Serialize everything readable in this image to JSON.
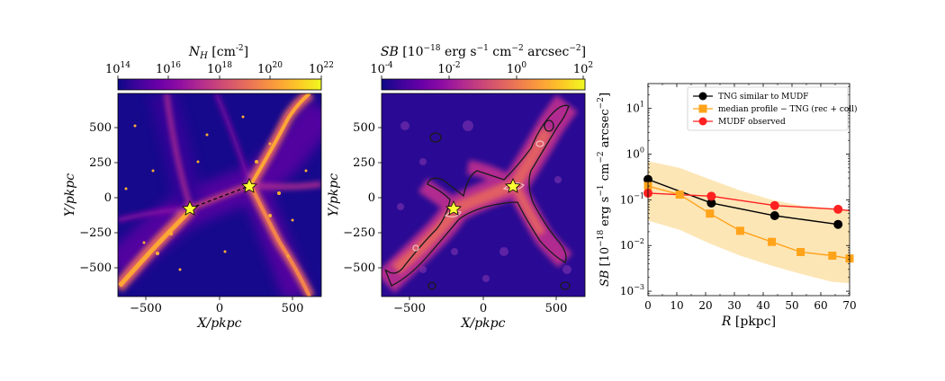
{
  "panel_left": {
    "colorbar_label": "N_H [cm^-2]",
    "colorbar_label_main": "N",
    "colorbar_label_sub": "H",
    "colorbar_label_unit": "[cm",
    "colorbar_label_exp": "-2",
    "colorbar_label_close": "]",
    "colorbar_ticks": [
      {
        "base": "10",
        "exp": "14"
      },
      {
        "base": "10",
        "exp": "16"
      },
      {
        "base": "10",
        "exp": "18"
      },
      {
        "base": "10",
        "exp": "20"
      },
      {
        "base": "10",
        "exp": "22"
      }
    ],
    "xlabel": "X/pkpc",
    "ylabel": "Y/pkpc",
    "xticks": [
      "−500",
      "0",
      "500"
    ],
    "yticks": [
      "500",
      "250",
      "0",
      "−250",
      "−500"
    ]
  },
  "panel_middle": {
    "colorbar_label": "SB [10^-18 erg s^-1 cm^-2 arcsec^-2]",
    "colorbar_label_parts": {
      "sb": "SB",
      "open": " [10",
      "e1": "−18",
      "erg": " erg s",
      "e2": "−1",
      "cm": " cm",
      "e3": "−2",
      "arc": " arcsec",
      "e4": "−2",
      "close": "]"
    },
    "colorbar_ticks": [
      {
        "base": "10",
        "exp": "-4"
      },
      {
        "base": "10",
        "exp": "-2"
      },
      {
        "base": "10",
        "exp": "0"
      },
      {
        "base": "10",
        "exp": "2"
      }
    ],
    "xlabel": "X/pkpc",
    "ylabel": "Y/pkpc",
    "xticks": [
      "−500",
      "0",
      "500"
    ],
    "yticks": [
      "500",
      "250",
      "0",
      "−250",
      "−500"
    ]
  },
  "chart_data": {
    "type": "line",
    "title": "",
    "xlabel": "R [pkpc]",
    "ylabel": "SB [10^-18 erg s^-1 cm^-2 arcsec^-2]",
    "xlim": [
      0,
      70
    ],
    "ylim": [
      0.0008,
      35
    ],
    "yscale": "log",
    "xticks": [
      0,
      10,
      20,
      30,
      40,
      50,
      60,
      70
    ],
    "yticks": [
      {
        "value": 0.001,
        "label_base": "10",
        "label_exp": "−3"
      },
      {
        "value": 0.01,
        "label_base": "10",
        "label_exp": "−2"
      },
      {
        "value": 0.1,
        "label_base": "10",
        "label_exp": "−1"
      },
      {
        "value": 1,
        "label_base": "10",
        "label_exp": "0"
      },
      {
        "value": 10,
        "label_base": "10",
        "label_exp": "1"
      }
    ],
    "series": [
      {
        "name": "TNG similar to MUDF",
        "color": "#000000",
        "marker": "circle",
        "x": [
          0,
          22,
          44,
          66
        ],
        "y": [
          0.28,
          0.085,
          0.045,
          0.029
        ]
      },
      {
        "name": "median profile − TNG (rec + coll)",
        "color": "#ffa31a",
        "marker": "square",
        "x": [
          0,
          11,
          21.5,
          32,
          43,
          53,
          64,
          70
        ],
        "y": [
          0.2,
          0.13,
          0.05,
          0.021,
          0.012,
          0.0072,
          0.006,
          0.0052
        ],
        "band_lower": [
          0.035,
          0.022,
          0.011,
          0.006,
          0.0036,
          0.0024,
          0.0016,
          0.0015
        ],
        "band_upper": [
          0.7,
          0.5,
          0.28,
          0.16,
          0.1,
          0.075,
          0.065,
          0.06
        ],
        "band_color": "#fde6b6"
      },
      {
        "name": "MUDF observed",
        "color": "#ff2020",
        "marker": "circle",
        "x": [
          0,
          22,
          44,
          66
        ],
        "y": [
          0.14,
          0.12,
          0.075,
          0.062
        ],
        "line_extend_to": 70,
        "line_end_y": 0.058
      }
    ],
    "legend_location": "top-left"
  },
  "colors": {
    "cmap_plasma": [
      "#0d0887",
      "#41049d",
      "#6a00a8",
      "#8f0da4",
      "#b12a90",
      "#cc4778",
      "#e16462",
      "#f2844b",
      "#fca636",
      "#fcce25",
      "#f0f921"
    ],
    "star": "#ffff33"
  }
}
